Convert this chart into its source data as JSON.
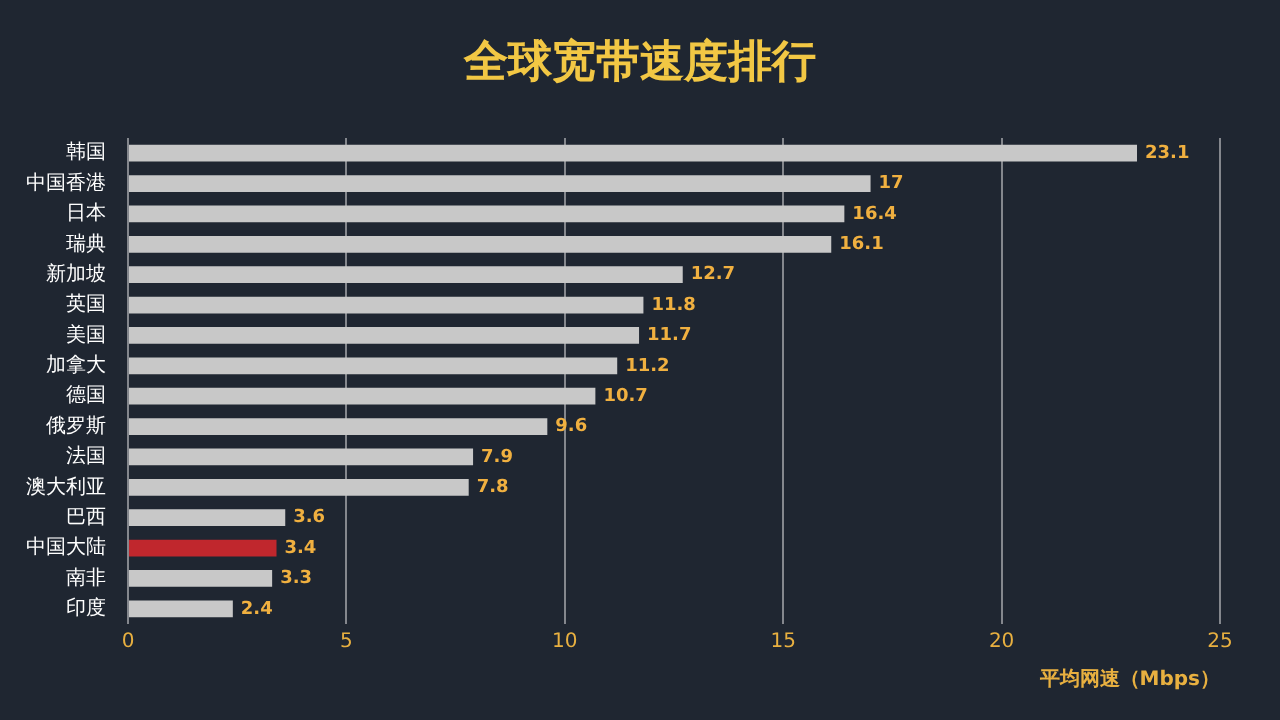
{
  "chart_data": {
    "type": "bar",
    "orientation": "horizontal",
    "title": "全球宽带速度排行",
    "xlabel": "平均网速（Mbps）",
    "categories": [
      "韩国",
      "中国香港",
      "日本",
      "瑞典",
      "新加坡",
      "英国",
      "美国",
      "加拿大",
      "德国",
      "俄罗斯",
      "法国",
      "澳大利亚",
      "巴西",
      "中国大陆",
      "南非",
      "印度"
    ],
    "values": [
      23.1,
      17,
      16.4,
      16.1,
      12.7,
      11.8,
      11.7,
      11.2,
      10.7,
      9.6,
      7.9,
      7.8,
      3.6,
      3.4,
      3.3,
      2.4
    ],
    "colors": [
      "#c8c8c8",
      "#c8c8c8",
      "#c8c8c8",
      "#c8c8c8",
      "#c8c8c8",
      "#c8c8c8",
      "#c8c8c8",
      "#c8c8c8",
      "#c8c8c8",
      "#c8c8c8",
      "#c8c8c8",
      "#c8c8c8",
      "#c8c8c8",
      "#c0272d",
      "#c8c8c8",
      "#c8c8c8"
    ],
    "xlim": [
      0,
      25
    ],
    "xticks": [
      0,
      5,
      10,
      15,
      20,
      25
    ],
    "grid": "x",
    "data_labels": true,
    "legend": false
  }
}
